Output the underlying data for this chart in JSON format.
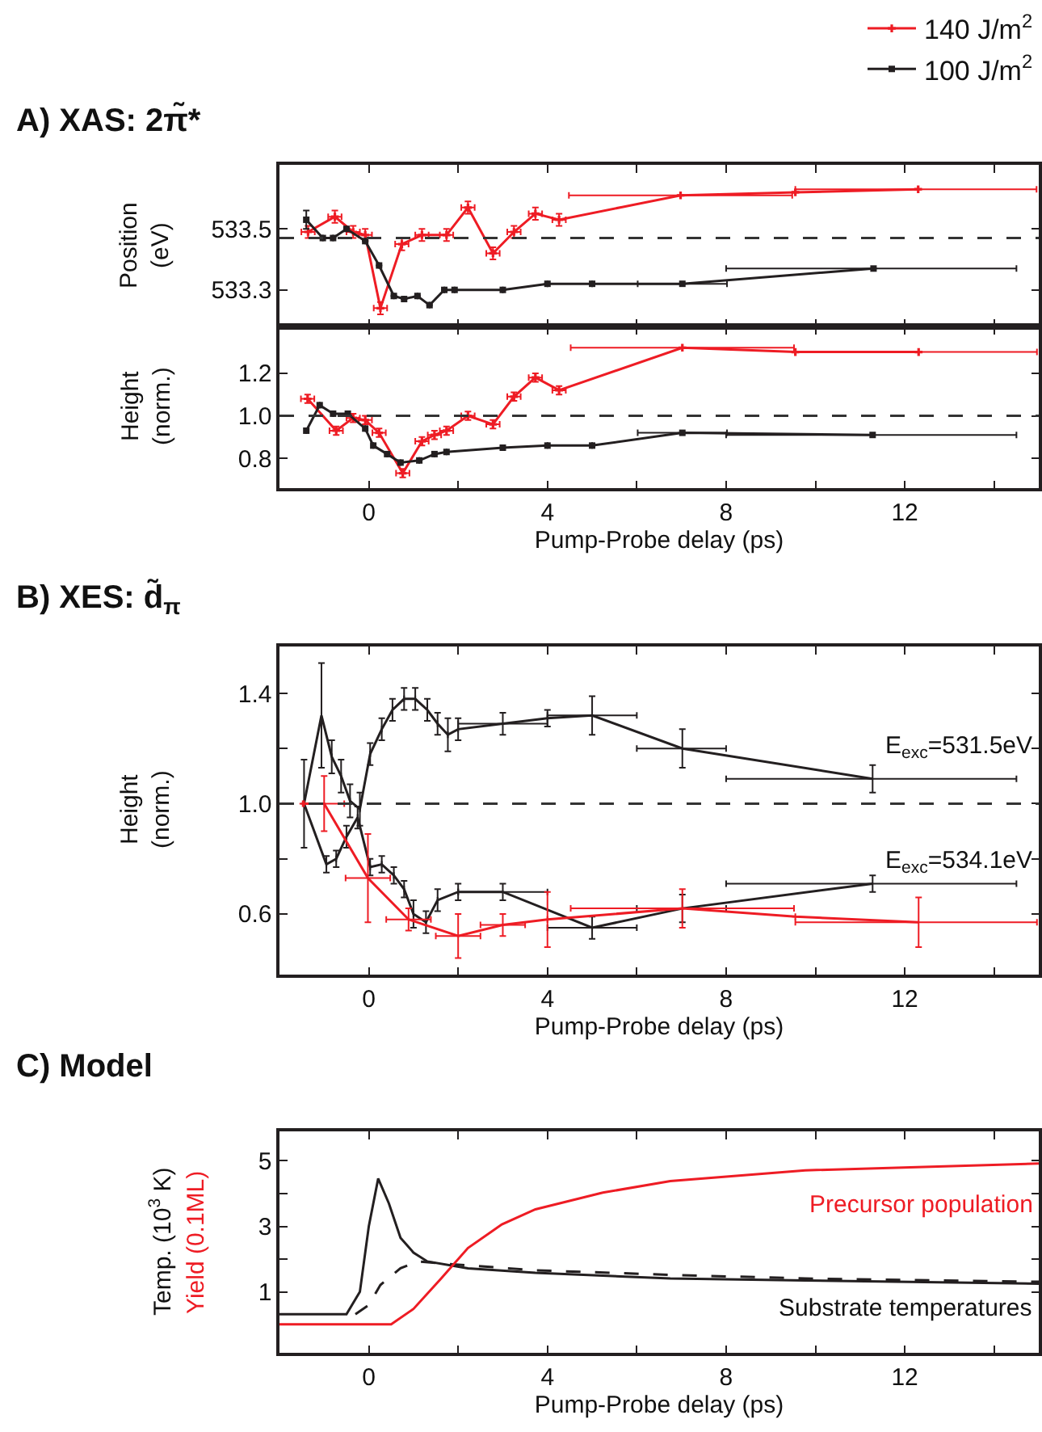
{
  "chart_data": [
    {
      "type": "line",
      "title": "A) XAS: 2π̃*",
      "ylabel": "Position\n(eV)",
      "legend": "top right",
      "tick_labels": "y",
      "xlim": [
        -2,
        15
      ],
      "xticks": [
        0,
        {
          "value": 2,
          "label": null
        },
        4,
        {
          "value": 6,
          "label": null
        },
        8,
        {
          "value": 10,
          "label": null
        },
        12,
        {
          "value": 14,
          "label": null
        }
      ],
      "ylim": [
        533.18,
        533.71
      ],
      "yticks": [
        533.3,
        533.5
      ],
      "ref_lines": [
        {
          "axis": "y",
          "value": 533.47,
          "label": null,
          "color": "#333333",
          "line_style": "dashed"
        }
      ],
      "series": [
        {
          "name": "140 J/m$^{2}$",
          "marker": "cross",
          "color": "#ee1c24",
          "x": [
            -1.36,
            -0.76,
            -0.35,
            -0.08,
            0.26,
            0.74,
            1.19,
            1.74,
            2.22,
            2.78,
            3.25,
            3.73,
            4.26,
            6.98,
            9.55,
            12.3
          ],
          "values": [
            533.49,
            533.54,
            533.49,
            533.48,
            533.24,
            533.45,
            533.48,
            533.48,
            533.57,
            533.42,
            533.49,
            533.55,
            533.53,
            533.61,
            533.62,
            533.63
          ],
          "errors": [
            0.02,
            0.02,
            0.02,
            0.02,
            0.02,
            0.02,
            0.02,
            0.02,
            0.02,
            0.02,
            0.02,
            0.02,
            0.02,
            null,
            null,
            null
          ],
          "xerrors": [
            0.15,
            0.15,
            0.15,
            0.15,
            0.15,
            0.15,
            0.15,
            0.15,
            0.15,
            0.15,
            0.15,
            0.15,
            0.15,
            [
              4.48,
              9.48
            ],
            null,
            [
              9.55,
              14.95
            ]
          ]
        },
        {
          "name": "100 J/m$^{2}$",
          "marker": "square",
          "color": "#231f20",
          "x": [
            -1.4,
            -1.03,
            -0.8,
            -0.5,
            -0.08,
            0.23,
            0.56,
            0.79,
            1.09,
            1.36,
            1.69,
            1.92,
            3.0,
            4.0,
            5.0,
            7.02,
            11.3
          ],
          "values": [
            533.53,
            533.47,
            533.47,
            533.5,
            533.46,
            533.38,
            533.28,
            533.27,
            533.28,
            533.25,
            533.3,
            533.3,
            533.3,
            533.32,
            533.32,
            533.32,
            533.37
          ],
          "errors": [
            0.03,
            null,
            null,
            null,
            null,
            null,
            null,
            null,
            null,
            null,
            null,
            null,
            null,
            null,
            null,
            null,
            null
          ],
          "xerrors": [
            null,
            null,
            null,
            null,
            null,
            null,
            null,
            null,
            null,
            null,
            null,
            null,
            null,
            null,
            null,
            [
              6.02,
              8.02
            ],
            [
              8.0,
              14.5
            ]
          ]
        }
      ]
    },
    {
      "type": "line",
      "ylabel": "Height\n(norm.)",
      "xlabel": "Pump-Probe delay (ps)",
      "xlim": [
        -2,
        15
      ],
      "xticks": [
        0,
        {
          "value": 2,
          "label": null
        },
        4,
        {
          "value": 6,
          "label": null
        },
        8,
        {
          "value": 10,
          "label": null
        },
        12,
        {
          "value": 14,
          "label": null
        }
      ],
      "ylim": [
        0.66,
        1.42
      ],
      "yticks": [
        0.8,
        {
          "value": 1,
          "label": "1.0"
        },
        1.2
      ],
      "ref_lines": [
        {
          "axis": "y",
          "value": 1,
          "label": null,
          "color": "#333333",
          "line_style": "dashed"
        }
      ],
      "series": [
        {
          "color": "#ee1c24",
          "marker": "cross",
          "x": [
            -1.37,
            -0.73,
            -0.35,
            -0.08,
            0.23,
            0.76,
            1.19,
            1.47,
            1.74,
            2.22,
            2.78,
            3.25,
            3.73,
            4.26,
            7.02,
            9.55,
            12.31
          ],
          "values": [
            1.08,
            0.93,
            0.99,
            0.98,
            0.92,
            0.73,
            0.88,
            0.91,
            0.93,
            1.0,
            0.96,
            1.09,
            1.18,
            1.12,
            1.32,
            1.3,
            1.3
          ],
          "errors": [
            0.02,
            0.02,
            0.02,
            0.02,
            0.02,
            0.02,
            0.02,
            0.02,
            0.02,
            0.02,
            0.02,
            0.02,
            0.02,
            0.02,
            null,
            null,
            null
          ],
          "xerrors": [
            0.15,
            0.15,
            0.15,
            0.15,
            0.15,
            0.15,
            0.15,
            0.15,
            0.15,
            0.15,
            0.15,
            0.15,
            0.15,
            0.15,
            [
              4.52,
              9.52
            ],
            null,
            [
              9.55,
              14.96
            ]
          ]
        },
        {
          "color": "#231f20",
          "marker": "square",
          "x": [
            -1.4,
            -1.1,
            -0.8,
            -0.47,
            -0.08,
            0.1,
            0.41,
            0.71,
            1.13,
            1.47,
            1.74,
            3.0,
            4.0,
            5.0,
            7.02,
            11.28
          ],
          "values": [
            0.93,
            1.05,
            1.01,
            1.01,
            0.94,
            0.86,
            0.82,
            0.78,
            0.79,
            0.82,
            0.83,
            0.85,
            0.86,
            0.86,
            0.92,
            0.91
          ],
          "xerrors": [
            null,
            null,
            null,
            null,
            null,
            null,
            null,
            null,
            null,
            null,
            null,
            null,
            null,
            null,
            [
              6.02,
              8.02
            ],
            [
              8.0,
              14.5
            ]
          ]
        }
      ]
    },
    {
      "type": "line",
      "title": "B) XES: d̃$_{π}$",
      "ylabel": "Height\n(norm.)",
      "xlabel": "Pump-Probe delay (ps)",
      "marker": "none",
      "xlim": [
        -2,
        15
      ],
      "xticks": [
        0,
        {
          "value": 2,
          "label": null
        },
        4,
        {
          "value": 6,
          "label": null
        },
        8,
        {
          "value": 10,
          "label": null
        },
        12,
        {
          "value": 14,
          "label": null
        }
      ],
      "ylim": [
        0.38,
        1.57
      ],
      "yticks": [
        0.6,
        {
          "value": 0.8,
          "label": null
        },
        {
          "value": 1,
          "label": "1.0"
        },
        {
          "value": 1.2,
          "label": null
        },
        1.4
      ],
      "ref_lines": [
        {
          "axis": "y",
          "value": 1,
          "label": null,
          "color": "#333333",
          "line_style": "dashed"
        }
      ],
      "annotations": [
        "E$_{exc}$=531.5eV",
        "E$_{exc}$=534.1eV"
      ],
      "series": [
        {
          "color": "#231f20",
          "x": [
            -1.45,
            -1.06,
            -0.83,
            -0.62,
            -0.42,
            -0.2,
            0.03,
            0.29,
            0.53,
            0.79,
            1.04,
            1.31,
            1.54,
            1.77,
            2.0,
            3.0,
            4.0,
            5.0,
            7.02,
            11.28
          ],
          "values": [
            1.0,
            1.32,
            1.17,
            1.1,
            1.01,
            0.98,
            1.18,
            1.27,
            1.34,
            1.38,
            1.38,
            1.34,
            1.29,
            1.25,
            1.27,
            1.29,
            1.31,
            1.32,
            1.2,
            1.09
          ],
          "errors": [
            0.16,
            0.19,
            0.06,
            0.06,
            0.06,
            0.06,
            0.04,
            0.04,
            0.04,
            0.04,
            0.04,
            0.04,
            0.04,
            0.06,
            0.04,
            0.04,
            0.03,
            0.07,
            0.07,
            0.05
          ],
          "xerrors": [
            null,
            null,
            null,
            null,
            null,
            null,
            null,
            null,
            null,
            null,
            null,
            null,
            null,
            null,
            null,
            [
              2,
              4
            ],
            null,
            [
              4,
              6
            ],
            [
              6,
              8
            ],
            [
              8,
              14.5
            ]
          ]
        },
        {
          "color": "#231f20",
          "x": [
            -1.45,
            -0.95,
            -0.73,
            -0.5,
            -0.25,
            0.03,
            0.29,
            0.56,
            0.79,
            1.0,
            1.28,
            1.54,
            2.0,
            3.0,
            5.0,
            7.02,
            11.28
          ],
          "values": [
            1.0,
            0.78,
            0.8,
            0.88,
            0.95,
            0.77,
            0.78,
            0.74,
            0.69,
            0.6,
            0.57,
            0.65,
            0.68,
            0.68,
            0.55,
            0.62,
            0.71
          ],
          "errors": [
            null,
            0.03,
            0.03,
            0.04,
            0.04,
            0.03,
            0.03,
            0.03,
            0.03,
            0.05,
            0.04,
            0.04,
            0.03,
            0.03,
            0.04,
            0.05,
            0.03
          ],
          "xerrors": [
            null,
            null,
            null,
            null,
            null,
            null,
            null,
            null,
            null,
            null,
            null,
            null,
            null,
            [
              2,
              4
            ],
            [
              4,
              6
            ],
            [
              6,
              8
            ],
            [
              8,
              14.5
            ]
          ]
        },
        {
          "color": "#ee1c24",
          "x": [
            -1.48,
            -1.0,
            -0.02,
            0.89,
            2.0,
            3.0,
            4.0,
            7.02,
            9.55,
            12.31
          ],
          "values": [
            1.0,
            1.0,
            0.73,
            0.58,
            0.52,
            0.56,
            0.58,
            0.62,
            0.59,
            0.57
          ],
          "errors": [
            null,
            0.1,
            0.16,
            0.04,
            0.08,
            0.04,
            0.1,
            0.07,
            null,
            0.09
          ],
          "xerrors": [
            null,
            0.45,
            0.5,
            0.5,
            0.5,
            0.5,
            null,
            [
              4.52,
              9.52
            ],
            null,
            [
              9.55,
              14.96
            ]
          ]
        }
      ]
    },
    {
      "type": "line",
      "title": "C) Model",
      "ylabel": "Temp. (10$^{3}$ K)",
      "xlabel": "Pump-Probe delay (ps)",
      "marker": "none",
      "xlim": [
        -2,
        15
      ],
      "xticks": [
        0,
        {
          "value": 2,
          "label": null
        },
        4,
        {
          "value": 6,
          "label": null
        },
        8,
        {
          "value": 10,
          "label": null
        },
        12,
        {
          "value": 14,
          "label": null
        }
      ],
      "ylim": [
        -0.86,
        5.9
      ],
      "yticks": [
        1,
        {
          "value": 2,
          "label": null
        },
        3,
        {
          "value": 4,
          "label": null
        },
        5
      ],
      "annotations": [
        "Yield (0.1ML)",
        "Precursor population",
        "Substrate temperatures"
      ],
      "series": [
        {
          "color": "#231f20",
          "line_style": "solid",
          "x": [
            -2,
            -0.5,
            -0.2,
            0.0,
            0.21,
            0.45,
            0.71,
            1.0,
            1.31,
            2.22,
            3.73,
            6.75,
            9.77,
            15
          ],
          "values": [
            0.32,
            0.32,
            1.0,
            3.0,
            4.46,
            3.7,
            2.65,
            2.2,
            1.93,
            1.72,
            1.58,
            1.41,
            1.35,
            1.25
          ]
        },
        {
          "color": "#231f20",
          "line_style": "dashed",
          "x": [
            -0.3,
            0.0,
            0.26,
            0.71,
            1.09,
            1.62,
            3.73,
            6.75,
            9.77,
            15
          ],
          "values": [
            0.32,
            0.6,
            1.21,
            1.72,
            1.93,
            1.87,
            1.66,
            1.52,
            1.41,
            1.31
          ]
        },
        {
          "color": "#ee1c24",
          "line_style": "solid",
          "x": [
            -2,
            0.5,
            1.0,
            1.62,
            2.22,
            2.98,
            3.73,
            5.24,
            6.75,
            9.77,
            15
          ],
          "values": [
            0.01,
            0.01,
            0.48,
            1.41,
            2.34,
            3.06,
            3.52,
            4.03,
            4.38,
            4.71,
            4.92
          ]
        }
      ]
    }
  ]
}
